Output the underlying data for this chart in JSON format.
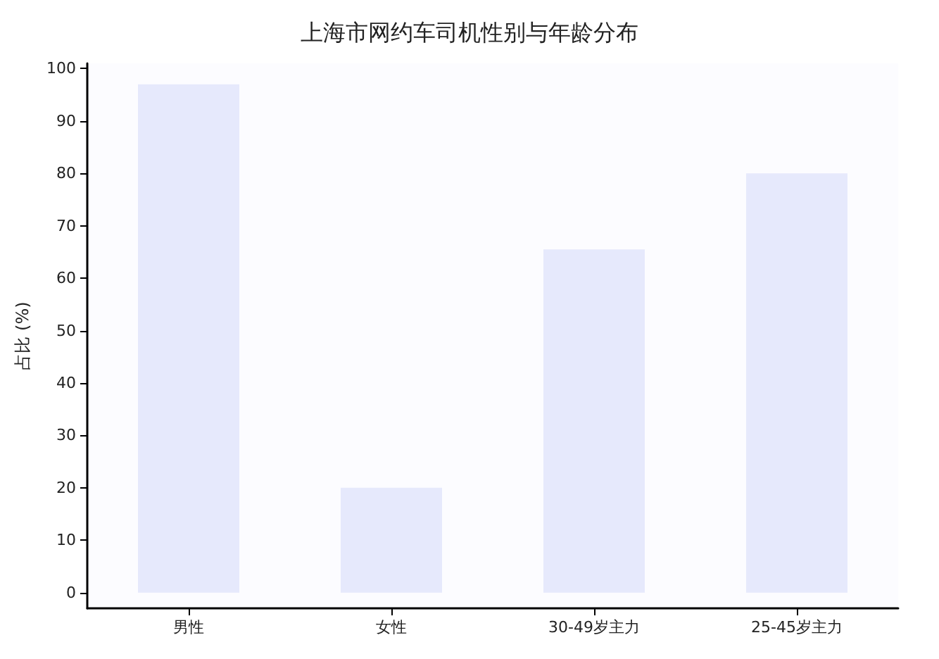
{
  "chart_data": {
    "type": "bar",
    "title": "上海市网约车司机性别与年龄分布",
    "ylabel": "占比 (%)",
    "categories": [
      "男性",
      "女性",
      "30-49岁主力",
      "25-45岁主力"
    ],
    "values": [
      97,
      20,
      65.5,
      80
    ],
    "color": "#e6e9fc",
    "ylim": [
      -3,
      101
    ],
    "yticks": [
      0,
      10,
      20,
      30,
      40,
      50,
      60,
      70,
      80,
      90,
      100
    ],
    "grid": false
  }
}
